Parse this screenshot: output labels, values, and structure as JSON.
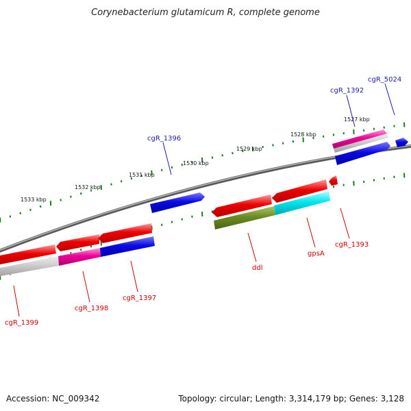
{
  "title": "Corynebacterium glutamicum R, complete genome",
  "footer": {
    "accession": "Accession: NC_009342",
    "info": "Topology: circular; Length: 3,314,179 bp; Genes: 3,128"
  },
  "colors": {
    "backbone": "#808080",
    "tick": "#1c7a1c",
    "top_label": "#1a1aa6",
    "bottom_label": "#cc0000",
    "red": "#ee0000",
    "magenta": "#ee0099",
    "blue": "#0a0ae6",
    "cyan": "#00e6ee",
    "olive": "#6b8c22",
    "gray": "#c0c0c0"
  },
  "scale": {
    "unit": "kbp",
    "ticks": [
      {
        "kbp": 1533,
        "label": "1533 kbp"
      },
      {
        "kbp": 1532,
        "label": "1532 kbp"
      },
      {
        "kbp": 1531,
        "label": "1531 kbp"
      },
      {
        "kbp": 1530,
        "label": "1530 kbp"
      },
      {
        "kbp": 1529,
        "label": "1529 kbp"
      },
      {
        "kbp": 1528,
        "label": "1528 kbp"
      },
      {
        "kbp": 1527,
        "label": "1527 kbp"
      }
    ]
  },
  "gene_labels": {
    "top": [
      {
        "name": "cgR_5024"
      },
      {
        "name": "cgR_1392"
      },
      {
        "name": "cgR_1396"
      }
    ],
    "bottom": [
      {
        "name": "cgR_1399"
      },
      {
        "name": "cgR_1398"
      },
      {
        "name": "cgR_1397"
      },
      {
        "name": "ddl"
      },
      {
        "name": "gpsA"
      },
      {
        "name": "cgR_1393"
      }
    ]
  }
}
